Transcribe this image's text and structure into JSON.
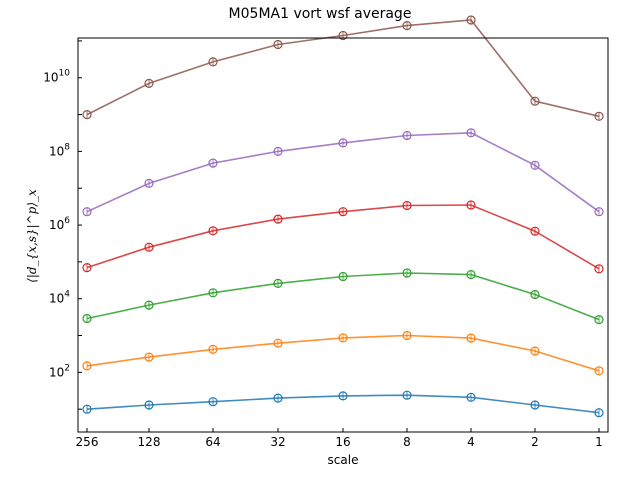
{
  "chart_data": {
    "type": "line",
    "title": "M05MA1 vort wsf average",
    "xlabel": "scale",
    "ylabel": "⟨|d_{x,s}|^p⟩_x",
    "x_scale": "log2-reversed",
    "y_scale": "log",
    "categories": [
      "256",
      "128",
      "64",
      "32",
      "16",
      "8",
      "4",
      "2",
      "1"
    ],
    "x_ticks": [
      "256",
      "128",
      "64",
      "32",
      "16",
      "8",
      "4",
      "2",
      "1"
    ],
    "y_ticks": [
      "10^2",
      "10^4",
      "10^6",
      "10^8",
      "10^10"
    ],
    "ylim": [
      2.4,
      120000000000.0
    ],
    "grid": false,
    "marker": "open-circle",
    "series": [
      {
        "color": "#1f77b4",
        "values": [
          10,
          13,
          16,
          20,
          23,
          24,
          21,
          13,
          8
        ]
      },
      {
        "color": "#ff7f0e",
        "values": [
          150,
          260,
          420,
          620,
          860,
          1000,
          850,
          380,
          110
        ]
      },
      {
        "color": "#2ca02c",
        "values": [
          2900,
          6700,
          14500,
          26000,
          40000,
          50000,
          45000,
          13000,
          2700
        ]
      },
      {
        "color": "#d62728",
        "values": [
          70000,
          250000,
          700000,
          1450000,
          2300000,
          3400000,
          3500000,
          680000,
          65000
        ]
      },
      {
        "color": "#9467bd",
        "values": [
          2300000,
          13500000,
          48000000,
          100000000,
          170000000,
          270000000,
          320000000,
          42000000,
          2300000
        ]
      },
      {
        "color": "#8c564b",
        "values": [
          1000000000,
          7000000000,
          27000000000,
          80000000000,
          140000000000,
          260000000000,
          370000000000,
          2300000000,
          900000000
        ]
      }
    ]
  }
}
